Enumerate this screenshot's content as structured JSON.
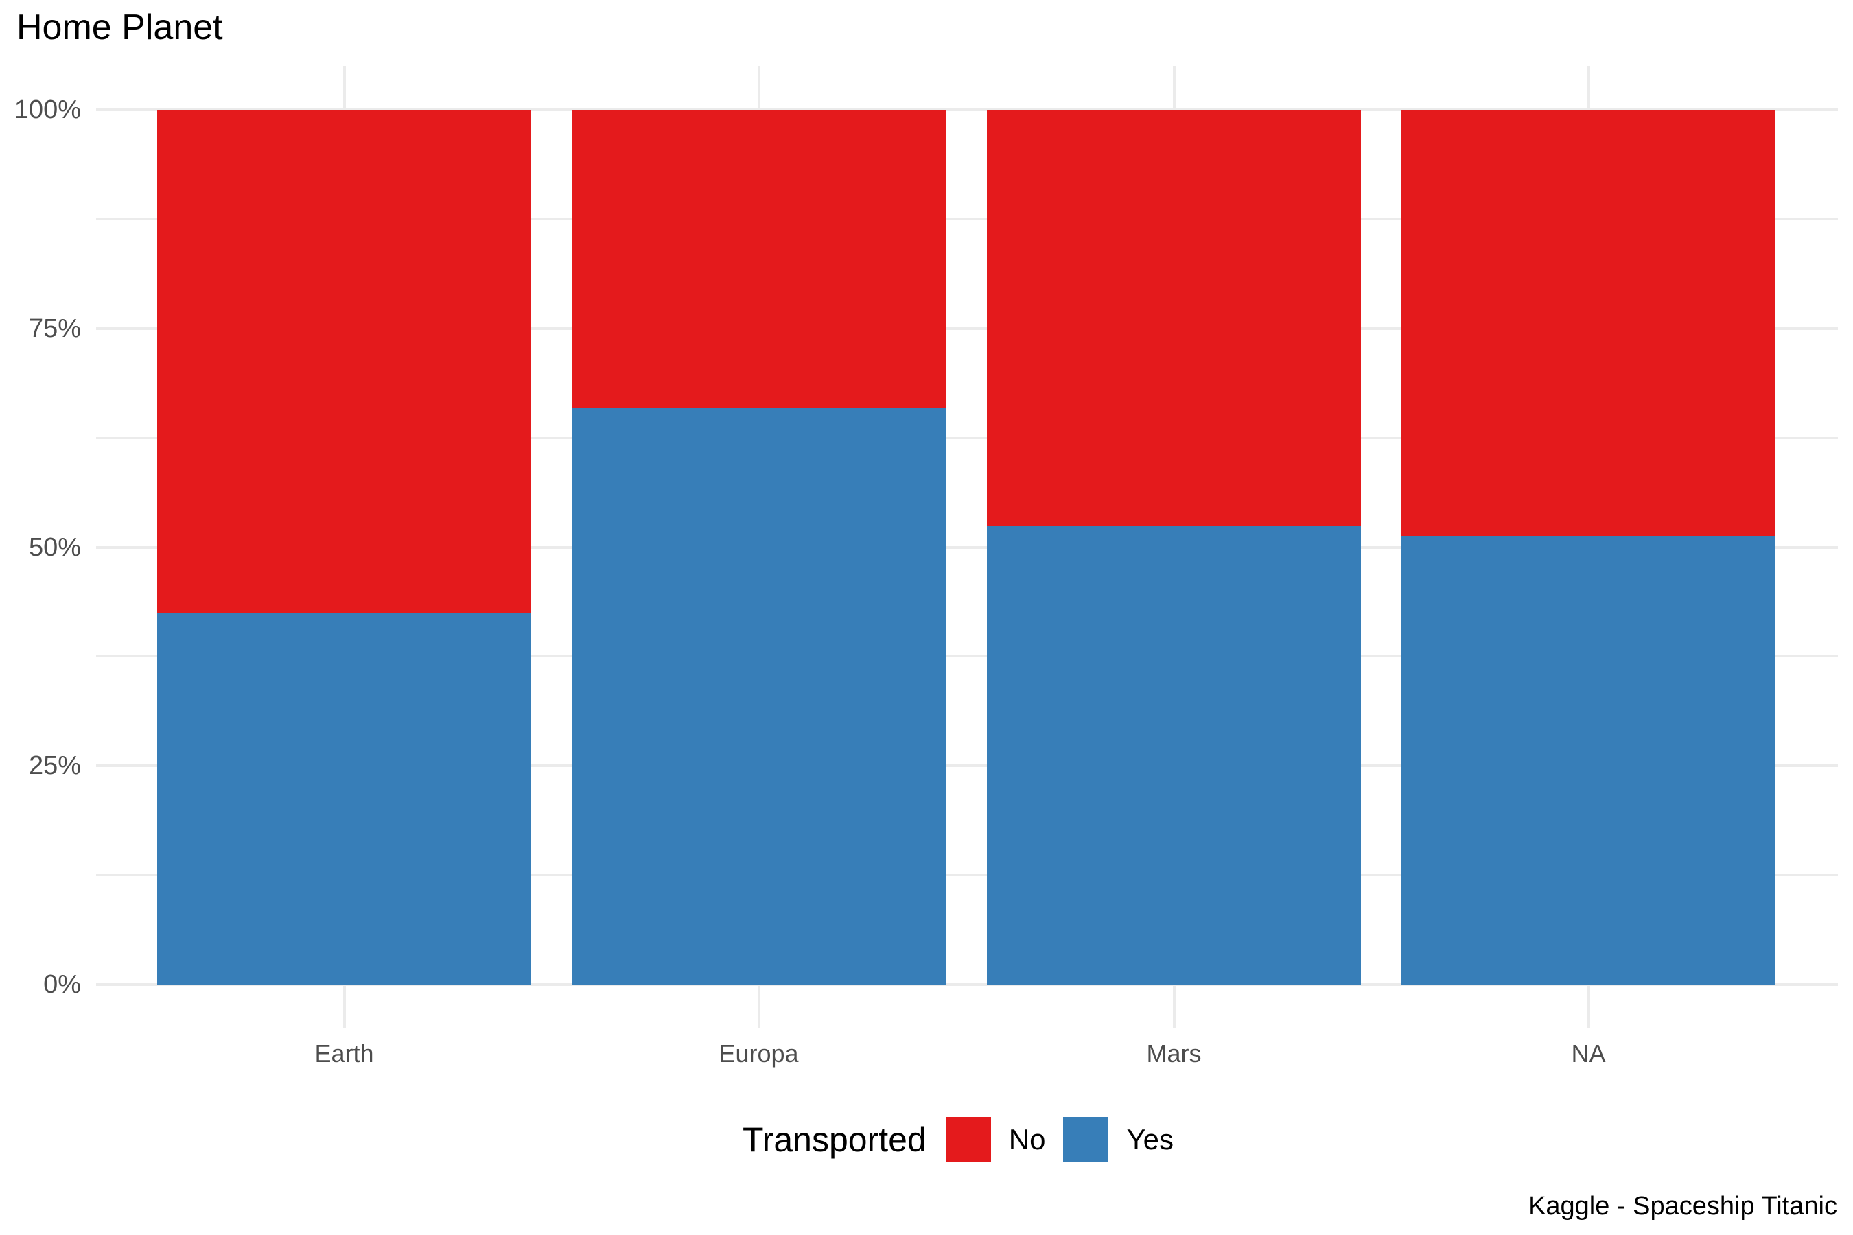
{
  "title": "Home Planet",
  "caption": "Kaggle - Spaceship Titanic",
  "colors": {
    "no": "#E41A1C",
    "yes": "#377EB8",
    "gridline": "#EBEBEB",
    "axis_text": "#4D4D4D",
    "title_text": "#000000",
    "background": "#FFFFFF"
  },
  "legend": {
    "title": "Transported",
    "position": "bottom",
    "items": [
      {
        "label": "No",
        "color": "#E41A1C"
      },
      {
        "label": "Yes",
        "color": "#377EB8"
      }
    ]
  },
  "y_axis": {
    "ticks": [
      {
        "label": "0%",
        "value": 0
      },
      {
        "label": "25%",
        "value": 25
      },
      {
        "label": "50%",
        "value": 50
      },
      {
        "label": "75%",
        "value": 75
      },
      {
        "label": "100%",
        "value": 100
      }
    ],
    "minor_values": [
      12.5,
      37.5,
      62.5,
      87.5
    ]
  },
  "chart_data": {
    "type": "bar",
    "stacked": true,
    "normalized_percent": true,
    "title": "Home Planet",
    "caption": "Kaggle - Spaceship Titanic",
    "categories": [
      "Earth",
      "Europa",
      "Mars",
      "NA"
    ],
    "series": [
      {
        "name": "No",
        "color": "#E41A1C",
        "values": [
          57.5,
          34.1,
          47.6,
          48.7
        ]
      },
      {
        "name": "Yes",
        "color": "#377EB8",
        "values": [
          42.5,
          65.9,
          52.4,
          51.3
        ]
      }
    ],
    "xlabel": "",
    "ylabel": "",
    "ylim": [
      0,
      100
    ],
    "grid": true,
    "legend_position": "bottom",
    "legend_title": "Transported"
  }
}
